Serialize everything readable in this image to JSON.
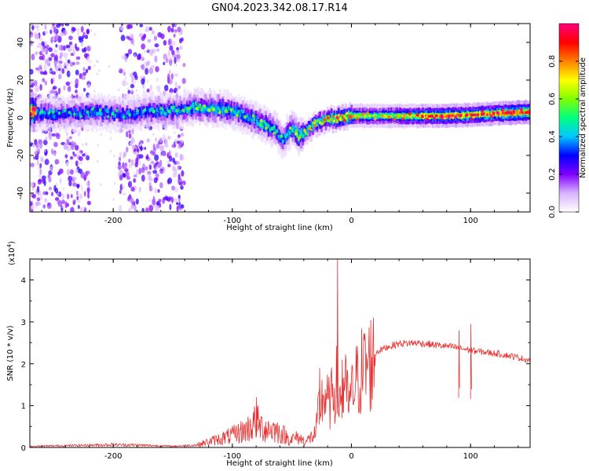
{
  "title": "GN04.2023.342.08.17.R14",
  "chart_data": [
    {
      "type": "heatmap",
      "xlabel": "Height of straight line (km)",
      "ylabel": "Frequency (Hz)",
      "xlim": [
        -270,
        150
      ],
      "ylim": [
        -50,
        50
      ],
      "xticks": [
        "-200",
        "-100",
        "0",
        "100"
      ],
      "yticks": [
        "-40",
        "-20",
        "0",
        "20",
        "40"
      ],
      "colorbar": {
        "label": "Normalized spectral amplitude",
        "range": [
          0,
          1
        ],
        "ticks": [
          "0.0",
          "0.2",
          "0.4",
          "0.6",
          "0.8"
        ],
        "colors": [
          "#ffffff",
          "#d9b3ff",
          "#8000ff",
          "#0000ff",
          "#00c8ff",
          "#00ff80",
          "#80ff00",
          "#ffff00",
          "#ff8000",
          "#ff0000",
          "#ff0080"
        ]
      },
      "ridge": [
        {
          "x": -265,
          "f": 2.5,
          "a": 0.4
        },
        {
          "x": -240,
          "f": 2.0,
          "a": 0.35
        },
        {
          "x": -215,
          "f": 3.0,
          "a": 0.4
        },
        {
          "x": -190,
          "f": 1.5,
          "a": 0.35
        },
        {
          "x": -165,
          "f": 3.5,
          "a": 0.4
        },
        {
          "x": -145,
          "f": 4.0,
          "a": 0.4
        },
        {
          "x": -130,
          "f": 6.0,
          "a": 0.5
        },
        {
          "x": -115,
          "f": 5.0,
          "a": 0.5
        },
        {
          "x": -100,
          "f": 4.0,
          "a": 0.45
        },
        {
          "x": -85,
          "f": 0.0,
          "a": 0.45
        },
        {
          "x": -75,
          "f": -3.0,
          "a": 0.5
        },
        {
          "x": -65,
          "f": -6.0,
          "a": 0.45
        },
        {
          "x": -58,
          "f": -12.0,
          "a": 0.4
        },
        {
          "x": -50,
          "f": -5.0,
          "a": 0.5
        },
        {
          "x": -44,
          "f": -10.0,
          "a": 0.55
        },
        {
          "x": -38,
          "f": -7.0,
          "a": 0.6
        },
        {
          "x": -30,
          "f": -3.0,
          "a": 0.65
        },
        {
          "x": -20,
          "f": -1.0,
          "a": 0.7
        },
        {
          "x": -10,
          "f": 0.0,
          "a": 0.85
        },
        {
          "x": 0,
          "f": 1.0,
          "a": 0.7
        },
        {
          "x": 20,
          "f": 1.0,
          "a": 0.6
        },
        {
          "x": 50,
          "f": 1.0,
          "a": 0.75
        },
        {
          "x": 80,
          "f": 1.0,
          "a": 0.9
        },
        {
          "x": 100,
          "f": 1.5,
          "a": 0.85
        },
        {
          "x": 130,
          "f": 2.5,
          "a": 0.95
        },
        {
          "x": 150,
          "f": 3.0,
          "a": 1.0
        }
      ],
      "noise_bands": [
        {
          "from": -270,
          "to": -220
        },
        {
          "from": -195,
          "to": -140
        }
      ]
    },
    {
      "type": "line",
      "xlabel": "Height of straight line (km)",
      "ylabel": "SNR (10 * v/v)",
      "exponent_label": "(x10",
      "exponent_sup": "4",
      "exponent_close": ")",
      "xlim": [
        -270,
        150
      ],
      "ylim": [
        0,
        4.5
      ],
      "xticks": [
        "-200",
        "-100",
        "0",
        "100"
      ],
      "yticks": [
        "0",
        "1",
        "2",
        "3",
        "4"
      ],
      "color": "#e83030",
      "envelope": [
        [
          -270,
          0.03
        ],
        [
          -230,
          0.05
        ],
        [
          -200,
          0.07
        ],
        [
          -180,
          0.06
        ],
        [
          -150,
          0.03
        ],
        [
          -130,
          0.06
        ],
        [
          -115,
          0.18
        ],
        [
          -100,
          0.3
        ],
        [
          -88,
          0.45
        ],
        [
          -80,
          0.65
        ],
        [
          -75,
          0.5
        ],
        [
          -65,
          0.45
        ],
        [
          -58,
          0.35
        ],
        [
          -52,
          0.2
        ],
        [
          -45,
          0.25
        ],
        [
          -38,
          0.15
        ],
        [
          -30,
          0.35
        ],
        [
          -27,
          1.1
        ],
        [
          -22,
          1.3
        ],
        [
          -18,
          1.05
        ],
        [
          -15,
          1.5
        ],
        [
          -12,
          1.6
        ],
        [
          -10,
          1.2
        ],
        [
          -6,
          1.6
        ],
        [
          -2,
          1.1
        ],
        [
          2,
          1.5
        ],
        [
          8,
          1.9
        ],
        [
          15,
          2.1
        ],
        [
          22,
          2.3
        ],
        [
          30,
          2.4
        ],
        [
          40,
          2.48
        ],
        [
          55,
          2.5
        ],
        [
          70,
          2.45
        ],
        [
          85,
          2.4
        ],
        [
          95,
          2.35
        ],
        [
          105,
          2.3
        ],
        [
          120,
          2.25
        ],
        [
          135,
          2.18
        ],
        [
          150,
          2.08
        ]
      ],
      "spikes": [
        {
          "x": -12,
          "y": 4.5
        },
        {
          "x": -27,
          "y": 1.9
        },
        {
          "x": -8,
          "y": 2.1
        },
        {
          "x": 100,
          "y": 2.95
        },
        {
          "x": 90,
          "y": 2.8
        },
        {
          "x": -80,
          "y": 1.2
        }
      ]
    }
  ]
}
